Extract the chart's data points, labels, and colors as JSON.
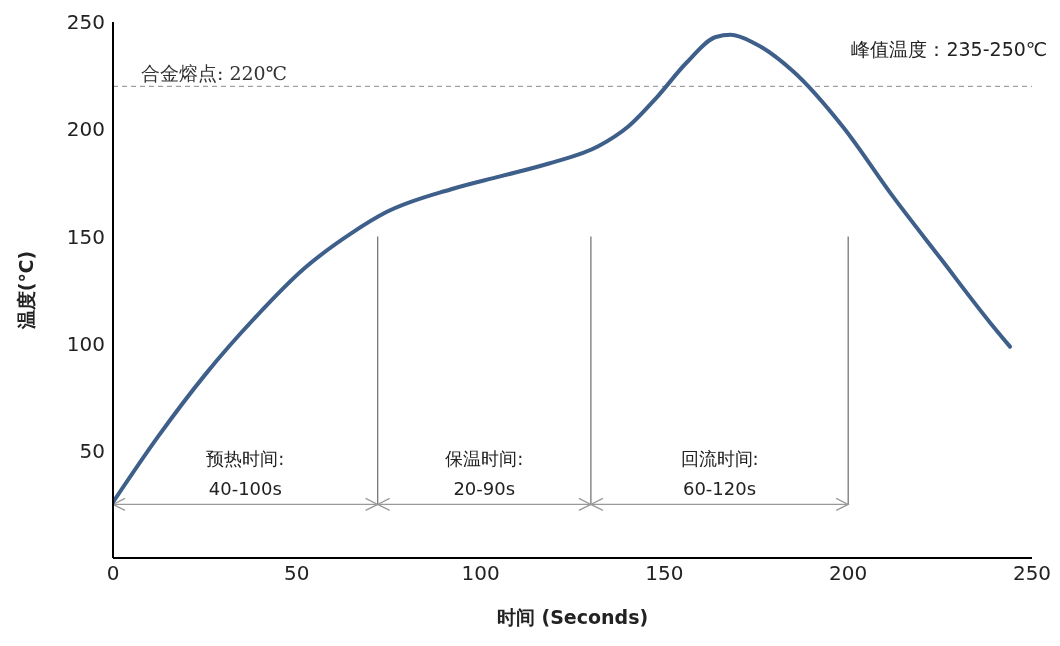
{
  "chart_data": {
    "type": "line",
    "xlabel": "时间 (Seconds)",
    "ylabel": "温度(℃)",
    "x": [
      0,
      12,
      25.3,
      38.6,
      52,
      65.3,
      74,
      92,
      105.3,
      118.6,
      132,
      140,
      148,
      156,
      164,
      168,
      174.6,
      185,
      198.6,
      212,
      225,
      238.5,
      244
    ],
    "series": [
      {
        "color": "#3e5f8a",
        "values": [
          26,
          56,
          86,
          112,
          135,
          152,
          161,
          172,
          178,
          184,
          192,
          201,
          215,
          231,
          243,
          244,
          240,
          227,
          201,
          169,
          140,
          110,
          98.6
        ]
      }
    ],
    "xlim": [
      0,
      250
    ],
    "xticks": [
      0,
      50,
      100,
      150,
      200,
      250
    ],
    "ylim": [
      0,
      250
    ],
    "yticks": [
      50,
      100,
      150,
      200,
      250
    ],
    "grid": false,
    "legend": false,
    "marker": "none",
    "line_style": "solid",
    "ref_lines": [
      {
        "axis": "y",
        "value": 220,
        "label": "合金熔点: 220℃",
        "color": "#888888",
        "line_style": "dashed"
      },
      {
        "axis": "x",
        "value": 72,
        "label": null,
        "color": "#777777",
        "line_style": "solid"
      },
      {
        "axis": "x",
        "value": 130,
        "label": null,
        "color": "#777777",
        "line_style": "solid"
      },
      {
        "axis": "x",
        "value": 200,
        "label": null,
        "color": "#777777",
        "line_style": "solid"
      }
    ],
    "annotations": [
      "预热时间:",
      "40-100s",
      "保温时间:",
      "20-90s",
      "回流时间:",
      "60-120s",
      "峰值温度：235-250℃"
    ]
  }
}
